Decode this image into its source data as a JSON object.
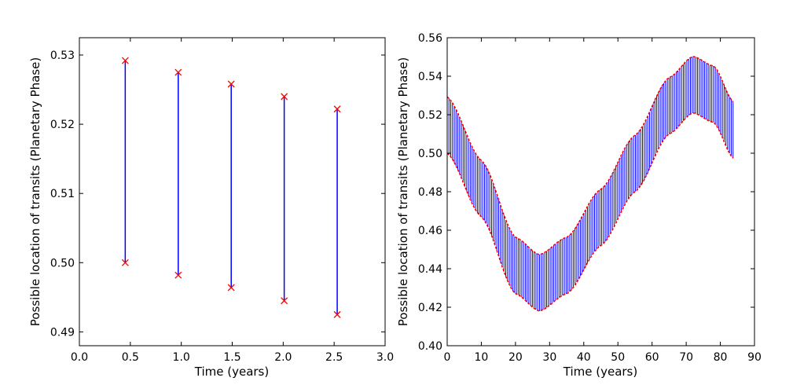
{
  "chart_data": [
    {
      "type": "line",
      "xlabel": "Time (years)",
      "ylabel": "Possible location of transits (Planetary Phase)",
      "xlim": [
        0.0,
        3.0
      ],
      "ylim": [
        0.488,
        0.5325
      ],
      "xticks": [
        "0.0",
        "0.5",
        "1.0",
        "1.5",
        "2.0",
        "2.5",
        "3.0"
      ],
      "xtick_values": [
        0.0,
        0.5,
        1.0,
        1.5,
        2.0,
        2.5,
        3.0
      ],
      "yticks": [
        "0.49",
        "0.50",
        "0.51",
        "0.52",
        "0.53"
      ],
      "ytick_values": [
        0.49,
        0.5,
        0.51,
        0.52,
        0.53
      ],
      "segments": [
        {
          "x": 0.45,
          "y_low": 0.5,
          "y_high": 0.5292
        },
        {
          "x": 0.97,
          "y_low": 0.4982,
          "y_high": 0.5275
        },
        {
          "x": 1.49,
          "y_low": 0.4964,
          "y_high": 0.5258
        },
        {
          "x": 2.01,
          "y_low": 0.4945,
          "y_high": 0.524
        },
        {
          "x": 2.53,
          "y_low": 0.4925,
          "y_high": 0.5222
        }
      ],
      "line_color": "#0000ff",
      "marker_color": "#ff0000",
      "grid": false
    },
    {
      "type": "line",
      "xlabel": "Time (years)",
      "ylabel": "Possible location of transits (Planetary Phase)",
      "xlim": [
        0,
        90
      ],
      "ylim": [
        0.4,
        0.56
      ],
      "xticks": [
        "0",
        "10",
        "20",
        "30",
        "40",
        "50",
        "60",
        "70",
        "80",
        "90"
      ],
      "xtick_values": [
        0,
        10,
        20,
        30,
        40,
        50,
        60,
        70,
        80,
        90
      ],
      "yticks": [
        "0.40",
        "0.42",
        "0.44",
        "0.46",
        "0.48",
        "0.50",
        "0.52",
        "0.54",
        "0.56"
      ],
      "ytick_values": [
        0.4,
        0.42,
        0.44,
        0.46,
        0.48,
        0.5,
        0.52,
        0.54,
        0.56
      ],
      "band": {
        "x_start": 0.0,
        "x_end": 84.0,
        "step": 0.52,
        "lower_curve": {
          "x": [
            0,
            10,
            20,
            27,
            35,
            45,
            55,
            65,
            72,
            78,
            84
          ],
          "y": [
            0.5,
            0.467,
            0.427,
            0.418,
            0.427,
            0.452,
            0.48,
            0.51,
            0.521,
            0.516,
            0.497
          ]
        },
        "width": 0.0293
      },
      "line_color": "#0000ff",
      "marker_color": "#ff0000",
      "grid": false
    }
  ]
}
